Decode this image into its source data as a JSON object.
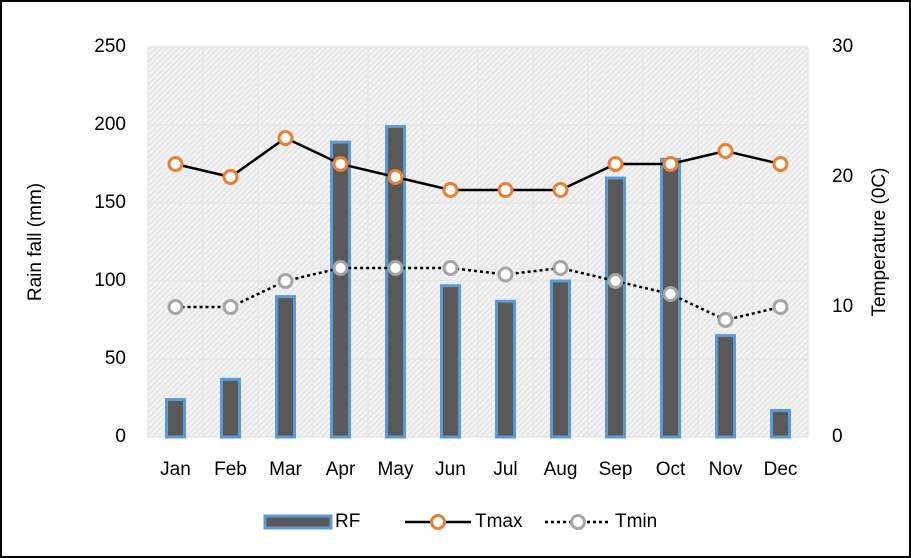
{
  "chart_data": {
    "type": "bar-line",
    "categories": [
      "Jan",
      "Feb",
      "Mar",
      "Apr",
      "May",
      "Jun",
      "Jul",
      "Aug",
      "Sep",
      "Oct",
      "Nov",
      "Dec"
    ],
    "series": [
      {
        "name": "RF",
        "type": "bar",
        "color": "#595959",
        "values": [
          24,
          37,
          90,
          189,
          199,
          97,
          87,
          100,
          166,
          178,
          65,
          17
        ]
      },
      {
        "name": "Tmax",
        "type": "line",
        "axis": "y2",
        "color": "#ed7d31",
        "values": [
          21,
          20,
          23,
          21,
          20,
          19,
          19,
          19,
          21,
          21,
          22,
          21
        ]
      },
      {
        "name": "Tmin",
        "type": "line",
        "axis": "y2",
        "color": "#a5a5a5",
        "dashed": true,
        "values": [
          10,
          10,
          12,
          13,
          13,
          13,
          12.5,
          13,
          12,
          11,
          9,
          10
        ]
      }
    ],
    "ylabel": "Rain fall (mm)",
    "y2label": "Temperature (0C)",
    "ylim": [
      0,
      250
    ],
    "yticks": [
      0,
      50,
      100,
      150,
      200,
      250
    ],
    "y2lim": [
      0,
      30
    ],
    "y2ticks": [
      0,
      10,
      20,
      30
    ],
    "grid": true,
    "legend": "bottom"
  }
}
